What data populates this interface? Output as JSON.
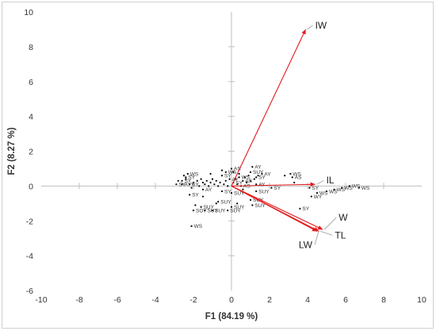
{
  "chart_data": {
    "type": "scatter",
    "subtype": "pca-biplot",
    "xlabel": "F1 (84.19 %)",
    "ylabel": "F2 (8.27 %)",
    "xlim": [
      -10,
      10
    ],
    "ylim": [
      -6,
      10
    ],
    "x_ticks": [
      -10,
      -8,
      -6,
      -4,
      -2,
      0,
      2,
      4,
      6,
      8,
      10
    ],
    "y_ticks": [
      -6,
      -4,
      -2,
      0,
      2,
      4,
      6,
      8,
      10
    ],
    "grid": false,
    "colors": {
      "vectors": "#e31a1c",
      "points": "#000000",
      "axes": "#bfbfbf",
      "text": "#333333"
    },
    "vectors": [
      {
        "name": "IW",
        "x": 3.9,
        "y": 9.0
      },
      {
        "name": "IL",
        "x": 4.4,
        "y": 0.1
      },
      {
        "name": "W",
        "x": 4.8,
        "y": -2.5
      },
      {
        "name": "TL",
        "x": 4.6,
        "y": -2.6
      },
      {
        "name": "LW",
        "x": 4.5,
        "y": -2.6
      }
    ],
    "labeled_points": [
      {
        "label": "WS",
        "x": -2.3,
        "y": 0.7
      },
      {
        "label": "SY",
        "x": -2.4,
        "y": 0.5
      },
      {
        "label": "SY",
        "x": -2.6,
        "y": 0.3
      },
      {
        "label": "SY",
        "x": -2.9,
        "y": 0.1
      },
      {
        "label": "AYY",
        "x": -2.6,
        "y": 0.1
      },
      {
        "label": "SY",
        "x": -2.2,
        "y": 0.1
      },
      {
        "label": "SY",
        "x": -2.2,
        "y": -0.5
      },
      {
        "label": "AY",
        "x": -1.5,
        "y": -0.2
      },
      {
        "label": "SY",
        "x": -0.5,
        "y": 0.6
      },
      {
        "label": "WS",
        "x": -0.3,
        "y": 0.8
      },
      {
        "label": "AS",
        "x": 0.0,
        "y": 1.0
      },
      {
        "label": "AY",
        "x": -0.1,
        "y": 0.4
      },
      {
        "label": "SY",
        "x": 0.1,
        "y": 0.2
      },
      {
        "label": "SY",
        "x": -0.5,
        "y": -0.3
      },
      {
        "label": "AY",
        "x": 1.1,
        "y": 1.1
      },
      {
        "label": "SUY",
        "x": 1.0,
        "y": 0.8
      },
      {
        "label": "AY",
        "x": 1.6,
        "y": 0.7
      },
      {
        "label": "SY",
        "x": 1.3,
        "y": 0.5
      },
      {
        "label": "WS",
        "x": 0.4,
        "y": 0.5
      },
      {
        "label": "AS",
        "x": 0.6,
        "y": 0.3
      },
      {
        "label": "AY",
        "x": 1.3,
        "y": 0.1
      },
      {
        "label": "AS",
        "x": 0.5,
        "y": 0.0
      },
      {
        "label": "SY",
        "x": 2.1,
        "y": -0.1
      },
      {
        "label": "SUY",
        "x": 1.3,
        "y": -0.3
      },
      {
        "label": "SUY",
        "x": 0.0,
        "y": -0.4
      },
      {
        "label": "SUY",
        "x": 1.0,
        "y": -0.8
      },
      {
        "label": "SUY",
        "x": 1.1,
        "y": -1.1
      },
      {
        "label": "SUY",
        "x": -0.7,
        "y": -0.9
      },
      {
        "label": "SUY",
        "x": -1.6,
        "y": -1.2
      },
      {
        "label": "SUY",
        "x": 0.0,
        "y": -1.2
      },
      {
        "label": "SUY",
        "x": -0.2,
        "y": -1.4
      },
      {
        "label": "SUY",
        "x": -1.4,
        "y": -1.4
      },
      {
        "label": "SUY",
        "x": -1.0,
        "y": -1.4
      },
      {
        "label": "SOY",
        "x": -2.0,
        "y": -1.4
      },
      {
        "label": "WS",
        "x": 3.1,
        "y": 0.7
      },
      {
        "label": "AS",
        "x": 3.2,
        "y": 0.5
      },
      {
        "label": "SY",
        "x": 3.6,
        "y": -1.3
      },
      {
        "label": "SY",
        "x": 4.1,
        "y": -0.1
      },
      {
        "label": "WY",
        "x": 4.2,
        "y": -0.6
      },
      {
        "label": "WS",
        "x": 4.5,
        "y": -0.4
      },
      {
        "label": "WS",
        "x": 5.0,
        "y": -0.3
      },
      {
        "label": "WS",
        "x": 5.4,
        "y": -0.2
      },
      {
        "label": "WS",
        "x": 5.8,
        "y": -0.1
      },
      {
        "label": "WS",
        "x": 6.2,
        "y": 0.0
      },
      {
        "label": "WS",
        "x": 6.7,
        "y": -0.1
      },
      {
        "label": "WS",
        "x": -2.1,
        "y": -2.3
      }
    ],
    "unlabeled_points": [
      {
        "x": -2.8,
        "y": 0.3
      },
      {
        "x": -2.5,
        "y": 0.6
      },
      {
        "x": -2.0,
        "y": 0.2
      },
      {
        "x": -1.8,
        "y": 0.3
      },
      {
        "x": -1.7,
        "y": 0.0
      },
      {
        "x": -1.6,
        "y": 0.4
      },
      {
        "x": -1.5,
        "y": 0.2
      },
      {
        "x": -1.4,
        "y": 0.1
      },
      {
        "x": -1.3,
        "y": 0.3
      },
      {
        "x": -1.2,
        "y": 0.0
      },
      {
        "x": -1.1,
        "y": 0.2
      },
      {
        "x": -1.0,
        "y": 0.4
      },
      {
        "x": -0.9,
        "y": 0.1
      },
      {
        "x": -0.8,
        "y": 0.3
      },
      {
        "x": -0.7,
        "y": 0.0
      },
      {
        "x": -0.6,
        "y": 0.2
      },
      {
        "x": -0.4,
        "y": 0.1
      },
      {
        "x": -0.3,
        "y": 0.3
      },
      {
        "x": -0.2,
        "y": 0.0
      },
      {
        "x": 0.2,
        "y": 0.4
      },
      {
        "x": 0.3,
        "y": 0.1
      },
      {
        "x": 0.4,
        "y": 0.7
      },
      {
        "x": 0.7,
        "y": 0.5
      },
      {
        "x": 0.8,
        "y": 0.2
      },
      {
        "x": 0.9,
        "y": 0.6
      },
      {
        "x": 1.0,
        "y": 0.3
      },
      {
        "x": 1.2,
        "y": 0.4
      },
      {
        "x": 1.4,
        "y": 0.6
      },
      {
        "x": 0.6,
        "y": -0.2
      },
      {
        "x": 0.9,
        "y": -0.5
      },
      {
        "x": -1.5,
        "y": -0.6
      },
      {
        "x": -1.9,
        "y": -1.1
      },
      {
        "x": -0.8,
        "y": -1.0
      },
      {
        "x": 0.3,
        "y": -1.0
      },
      {
        "x": -1.1,
        "y": 0.7
      },
      {
        "x": -0.5,
        "y": 0.9
      },
      {
        "x": 0.1,
        "y": 0.8
      },
      {
        "x": 2.8,
        "y": 0.6
      },
      {
        "x": 3.3,
        "y": 0.2
      },
      {
        "x": -2.4,
        "y": 0.4
      },
      {
        "x": -2.1,
        "y": -0.1
      }
    ]
  }
}
